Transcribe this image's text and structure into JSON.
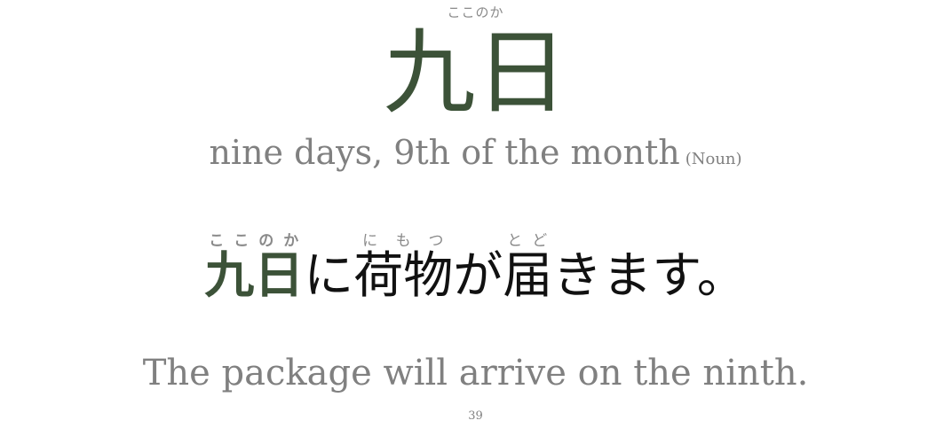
{
  "word": {
    "furigana": "ここのか",
    "kanji": "九日",
    "meaning": "nine days, 9th of the month",
    "part_of_speech": "(Noun)"
  },
  "sentence": {
    "segments": [
      {
        "text": "九日",
        "reading": "ここのか"
      },
      {
        "text": "に"
      },
      {
        "text": "荷物",
        "reading": "にもつ"
      },
      {
        "text": "が"
      },
      {
        "text": "届",
        "reading": "とど"
      },
      {
        "text": "きます。"
      }
    ],
    "translation": "The package will arrive on the ninth."
  },
  "page_number": "39",
  "colors": {
    "accent": "#3c5238",
    "muted_text": "#808080",
    "furigana": "#8a8a8a",
    "body_text": "#111111"
  }
}
